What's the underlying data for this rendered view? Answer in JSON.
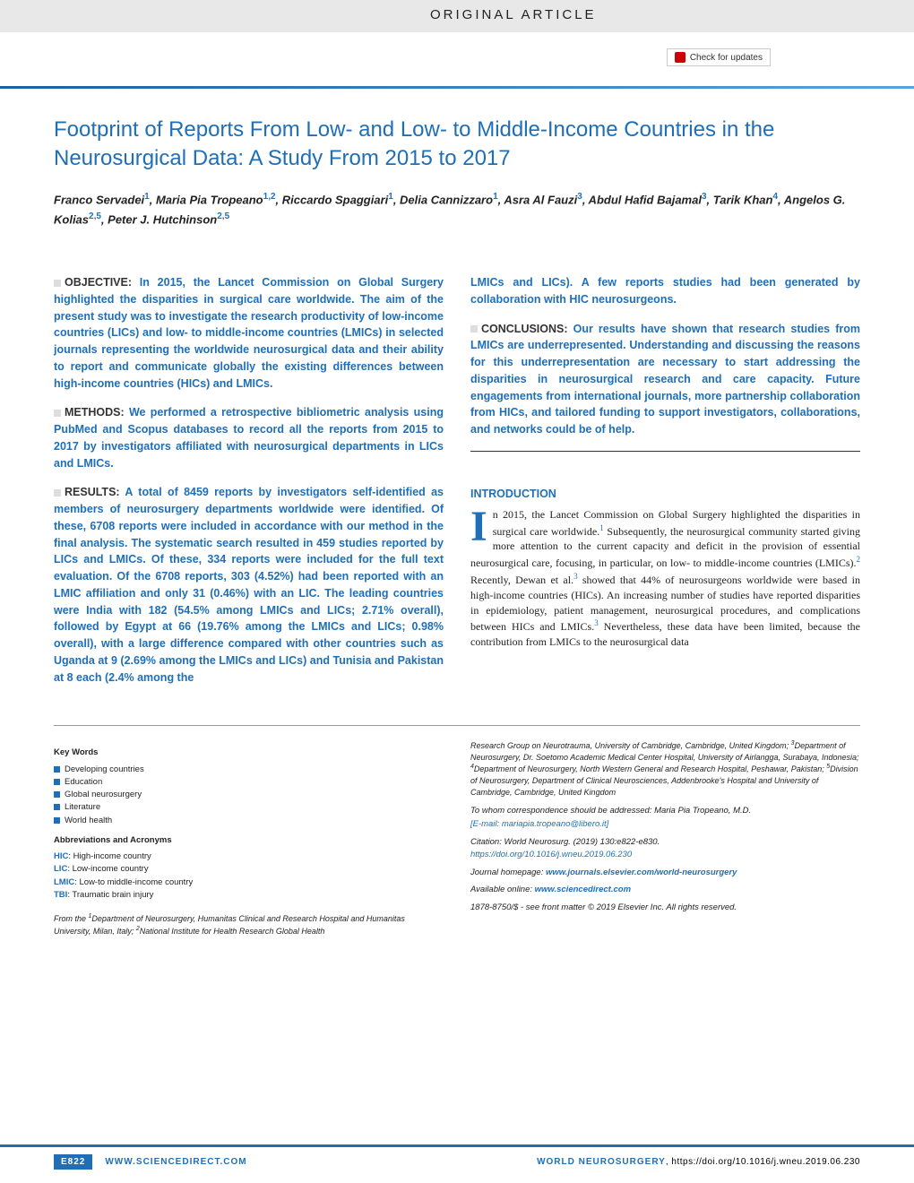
{
  "header": {
    "article_type": "Original Article",
    "check_updates": "Check for updates"
  },
  "title": "Footprint of Reports From Low- and Low- to Middle-Income Countries in the Neurosurgical Data: A Study From 2015 to 2017",
  "authors_html": "Franco Servadei<sup>1</sup>, Maria Pia Tropeano<sup>1,2</sup>, Riccardo Spaggiari<sup>1</sup>, Delia Cannizzaro<sup>1</sup>, Asra Al Fauzi<sup>3</sup>, Abdul Hafid Bajamal<sup>3</sup>, Tarik Khan<sup>4</sup>, Angelos G. Kolias<sup>2,5</sup>, Peter J. Hutchinson<sup>2,5</sup>",
  "abstract": {
    "objective": {
      "label": "OBJECTIVE:",
      "text": "In 2015, the Lancet Commission on Global Surgery highlighted the disparities in surgical care worldwide. The aim of the present study was to investigate the research productivity of low-income countries (LICs) and low- to middle-income countries (LMICs) in selected journals representing the worldwide neurosurgical data and their ability to report and communicate globally the existing differences between high-income countries (HICs) and LMICs."
    },
    "methods": {
      "label": "METHODS:",
      "text": "We performed a retrospective bibliometric analysis using PubMed and Scopus databases to record all the reports from 2015 to 2017 by investigators affiliated with neurosurgical departments in LICs and LMICs."
    },
    "results": {
      "label": "RESULTS:",
      "text": "A total of 8459 reports by investigators self-identified as members of neurosurgery departments worldwide were identified. Of these, 6708 reports were included in accordance with our method in the final analysis. The systematic search resulted in 459 studies reported by LICs and LMICs. Of these, 334 reports were included for the full text evaluation. Of the 6708 reports, 303 (4.52%) had been reported with an LMIC affiliation and only 31 (0.46%) with an LIC. The leading countries were India with 182 (54.5% among LMICs and LICs; 2.71% overall), followed by Egypt at 66 (19.76% among the LMICs and LICs; 0.98% overall), with a large difference compared with other countries such as Uganda at 9 (2.69% among the LMICs and LICs) and Tunisia and Pakistan at 8 each (2.4% among the"
    },
    "results_cont": "LMICs and LICs). A few reports studies had been generated by collaboration with HIC neurosurgeons.",
    "conclusions": {
      "label": "CONCLUSIONS:",
      "text": "Our results have shown that research studies from LMICs are underrepresented. Understanding and discussing the reasons for this underrepresentation are necessary to start addressing the disparities in neurosurgical research and care capacity. Future engagements from international journals, more partnership collaboration from HICs, and tailored funding to support investigators, collaborations, and networks could be of help."
    }
  },
  "introduction": {
    "heading": "INTRODUCTION",
    "text": "n 2015, the Lancet Commission on Global Surgery highlighted the disparities in surgical care worldwide.<sup>1</sup> Subsequently, the neurosurgical community started giving more attention to the current capacity and deficit in the provision of essential neurosurgical care, focusing, in particular, on low- to middle-income countries (LMICs).<sup>2</sup> Recently, Dewan et al.<sup>3</sup> showed that 44% of neurosurgeons worldwide were based in high-income countries (HICs). An increasing number of studies have reported disparities in epidemiology, patient management, neurosurgical procedures, and complications between HICs and LMICs.<sup>3</sup> Nevertheless, these data have been limited, because the contribution from LMICs to the neurosurgical data"
  },
  "keywords": {
    "heading": "Key Words",
    "items": [
      "Developing countries",
      "Education",
      "Global neurosurgery",
      "Literature",
      "World health"
    ]
  },
  "abbreviations": {
    "heading": "Abbreviations and Acronyms",
    "items": [
      {
        "term": "HIC",
        "def": "High-income country"
      },
      {
        "term": "LIC",
        "def": "Low-income country"
      },
      {
        "term": "LMIC",
        "def": "Low-to middle-income country"
      },
      {
        "term": "TBI",
        "def": "Traumatic brain injury"
      }
    ]
  },
  "affiliations": {
    "left": "From the <sup>1</sup>Department of Neurosurgery, Humanitas Clinical and Research Hospital and Humanitas University, Milan, Italy; <sup>2</sup>National Institute for Health Research Global Health",
    "right": "Research Group on Neurotrauma, University of Cambridge, Cambridge, United Kingdom; <sup>3</sup>Department of Neurosurgery, Dr. Soetomo Academic Medical Center Hospital, University of Airlangga, Surabaya, Indonesia; <sup>4</sup>Department of Neurosurgery, North Western General and Research Hospital, Peshawar, Pakistan; <sup>5</sup>Division of Neurosurgery, Department of Clinical Neurosciences, Addenbrooke's Hospital and University of Cambridge, Cambridge, United Kingdom"
  },
  "correspondence": {
    "text": "To whom correspondence should be addressed: Maria Pia Tropeano, M.D.",
    "email": "[E-mail: mariapia.tropeano@libero.it]"
  },
  "citation": "Citation: World Neurosurg. (2019) 130:e822-e830.",
  "doi": "https://doi.org/10.1016/j.wneu.2019.06.230",
  "journal_home_label": "Journal homepage:",
  "journal_home": "www.journals.elsevier.com/world-neurosurgery",
  "available_label": "Available online:",
  "available": "www.sciencedirect.com",
  "copyright": "1878-8750/$ - see front matter © 2019 Elsevier Inc. All rights reserved.",
  "footer": {
    "page": "E822",
    "site": "WWW.SCIENCEDIRECT.COM",
    "journal": "WORLD NEUROSURGERY",
    "doi": "https://doi.org/10.1016/j.wneu.2019.06.230"
  }
}
